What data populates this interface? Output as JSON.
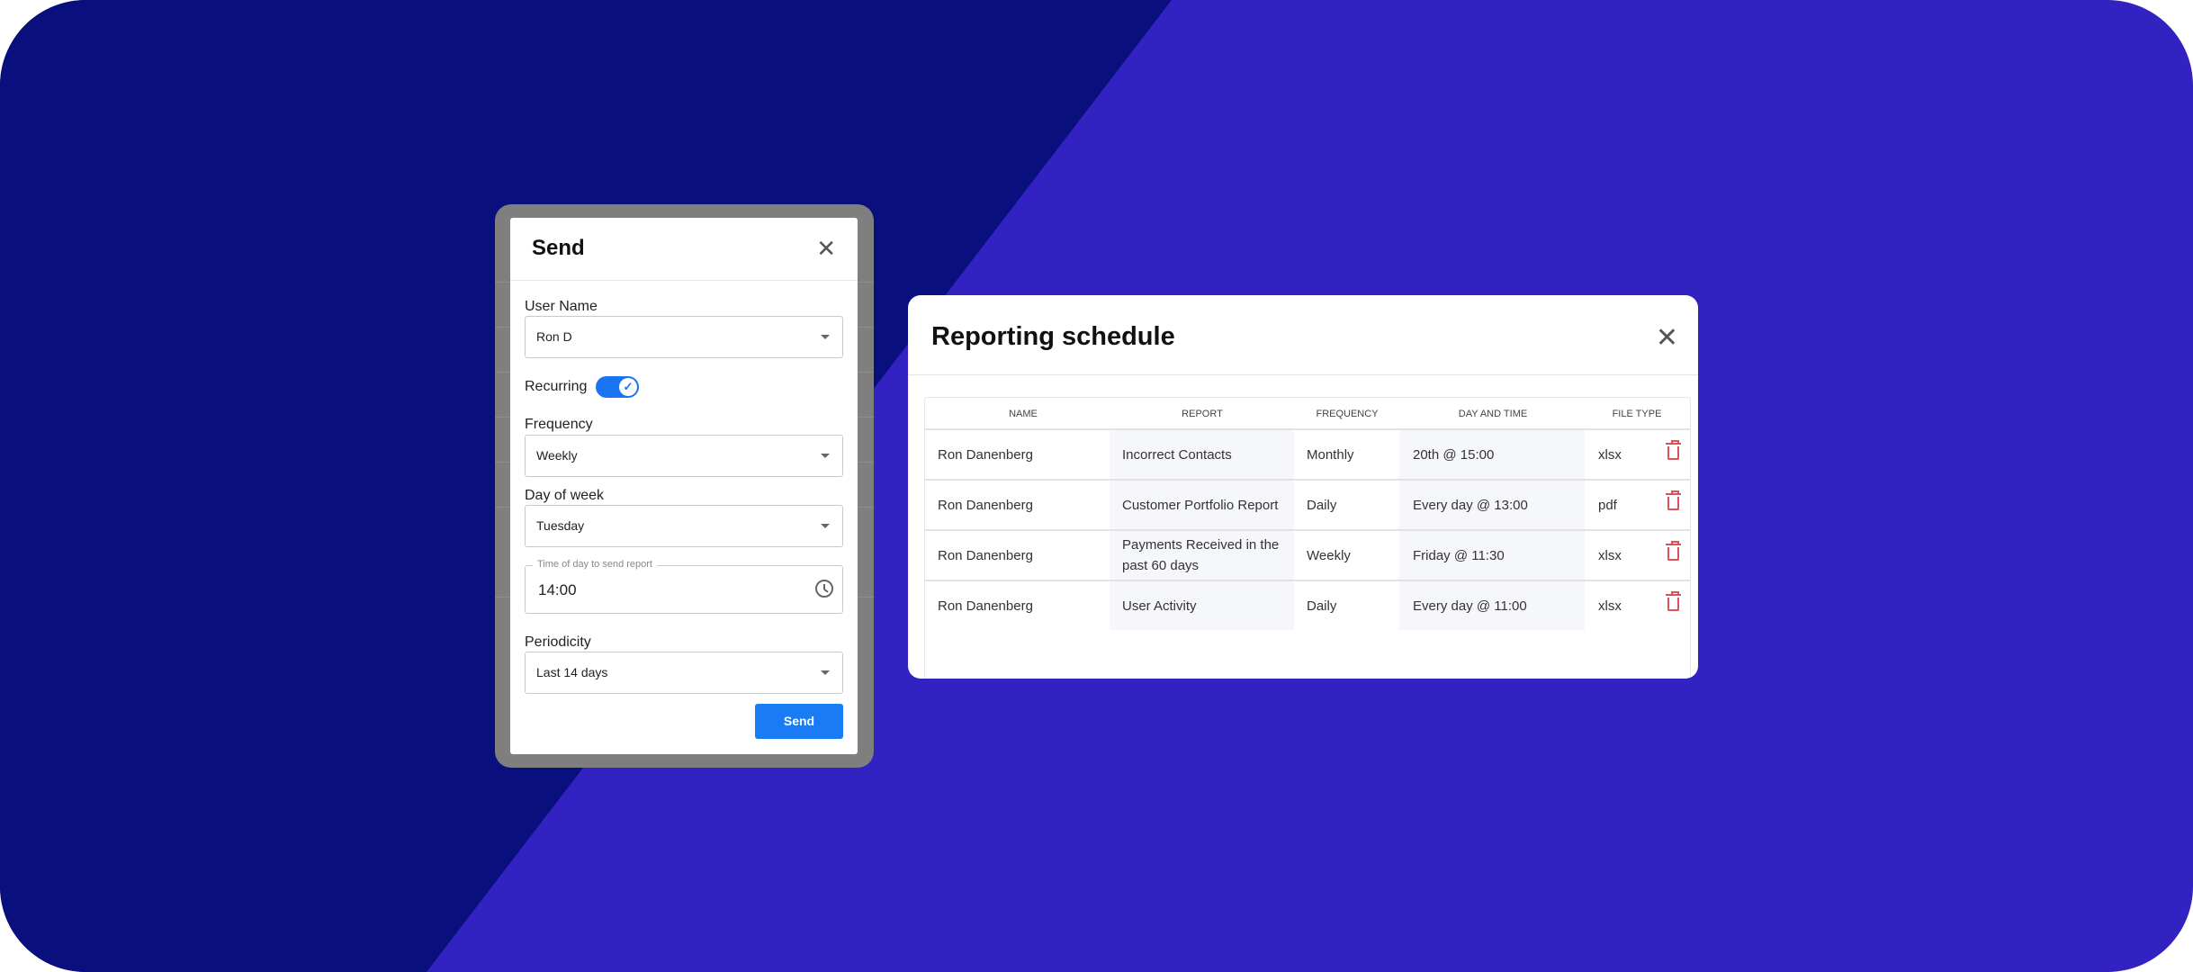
{
  "colors": {
    "bg_dark": "#0a0f7e",
    "bg_purple": "#3322c2",
    "accent": "#1a7cf5",
    "danger": "#e0505a"
  },
  "send_modal": {
    "title": "Send",
    "close_icon": "close-icon",
    "user_name": {
      "label": "User Name",
      "value": "Ron D"
    },
    "recurring": {
      "label": "Recurring",
      "on": true
    },
    "frequency": {
      "label": "Frequency",
      "value": "Weekly"
    },
    "day_of_week": {
      "label": "Day of week",
      "value": "Tuesday"
    },
    "time": {
      "label": "Time of day to send report",
      "value": "14:00"
    },
    "periodicity": {
      "label": "Periodicity",
      "value": "Last 14 days"
    },
    "send_label": "Send"
  },
  "schedule": {
    "title": "Reporting schedule",
    "columns": [
      "NAME",
      "REPORT",
      "FREQUENCY",
      "DAY AND TIME",
      "FILE TYPE"
    ],
    "rows": [
      {
        "name": "Ron Danenberg",
        "report": "Incorrect Contacts",
        "frequency": "Monthly",
        "day_time": "20th @ 15:00",
        "file_type": "xlsx"
      },
      {
        "name": "Ron Danenberg",
        "report": "Customer Portfolio Report",
        "frequency": "Daily",
        "day_time": "Every day @ 13:00",
        "file_type": "pdf"
      },
      {
        "name": "Ron Danenberg",
        "report": "Payments Received in the past 60 days",
        "frequency": "Weekly",
        "day_time": "Friday @ 11:30",
        "file_type": "xlsx"
      },
      {
        "name": "Ron Danenberg",
        "report": "User Activity",
        "frequency": "Daily",
        "day_time": "Every day @ 11:00",
        "file_type": "xlsx"
      }
    ]
  }
}
